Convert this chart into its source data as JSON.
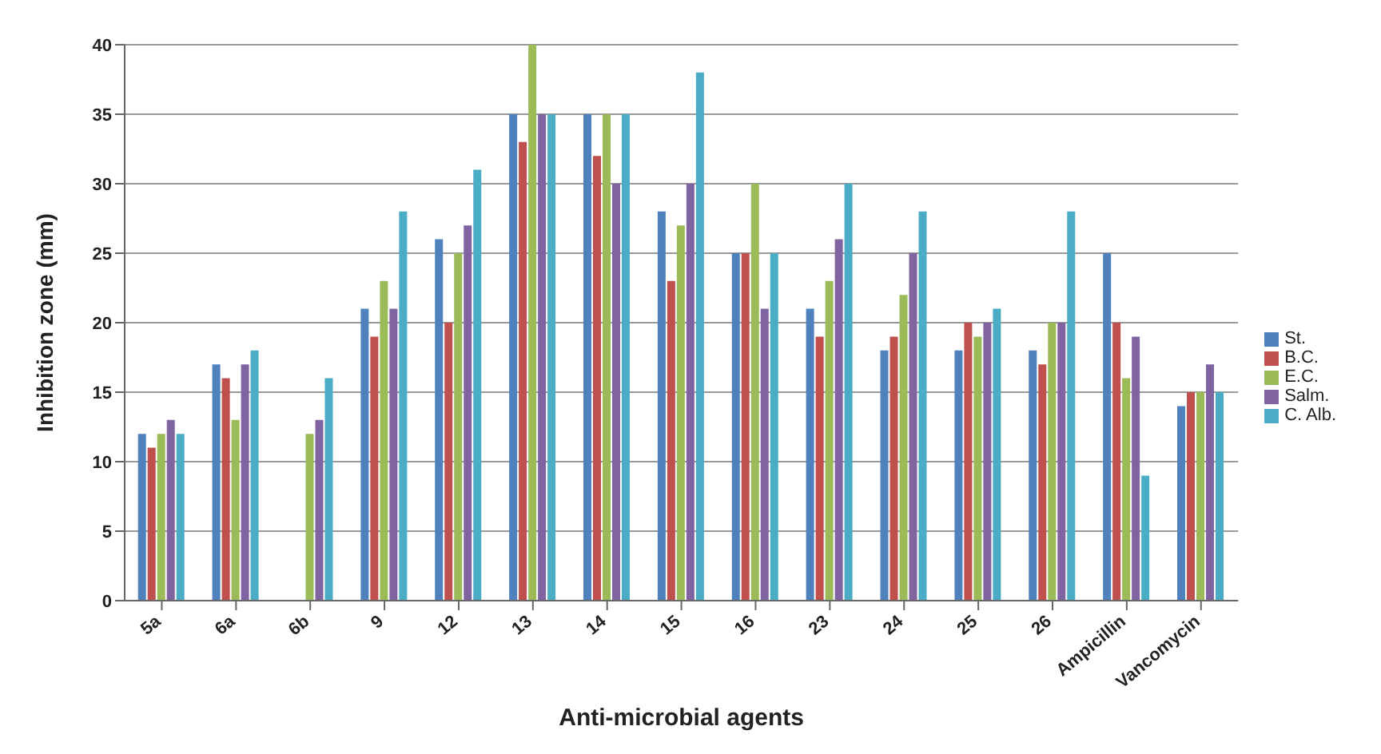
{
  "chart_data": {
    "type": "bar",
    "xlabel": "Anti-microbial agents",
    "ylabel": "Inhibition zone (mm)",
    "categories": [
      "5a",
      "6a",
      "6b",
      "9",
      "12",
      "13",
      "14",
      "15",
      "16",
      "23",
      "24",
      "25",
      "26",
      "Ampicillin",
      "Vancomycin"
    ],
    "series": [
      {
        "name": "St.",
        "color": "#4f81bd",
        "values": [
          12,
          17,
          0,
          21,
          26,
          35,
          35,
          28,
          25,
          21,
          18,
          18,
          18,
          25,
          14
        ]
      },
      {
        "name": "B.C.",
        "color": "#c0504d",
        "values": [
          11,
          16,
          0,
          19,
          20,
          33,
          32,
          23,
          25,
          19,
          19,
          20,
          17,
          20,
          15
        ]
      },
      {
        "name": "E.C.",
        "color": "#9bbb59",
        "values": [
          12,
          13,
          12,
          23,
          25,
          40,
          35,
          27,
          30,
          23,
          22,
          19,
          20,
          16,
          15
        ]
      },
      {
        "name": "Salm.",
        "color": "#8064a2",
        "values": [
          13,
          17,
          13,
          21,
          27,
          35,
          30,
          30,
          21,
          26,
          25,
          20,
          20,
          19,
          17
        ]
      },
      {
        "name": "C. Alb.",
        "color": "#4bacc6",
        "values": [
          12,
          18,
          16,
          28,
          31,
          35,
          35,
          38,
          25,
          30,
          28,
          21,
          28,
          9,
          15
        ]
      }
    ],
    "ylim": [
      0,
      40
    ],
    "yticks": [
      0,
      5,
      10,
      15,
      20,
      25,
      30,
      35,
      40
    ],
    "grid": "y",
    "legend": "right"
  }
}
